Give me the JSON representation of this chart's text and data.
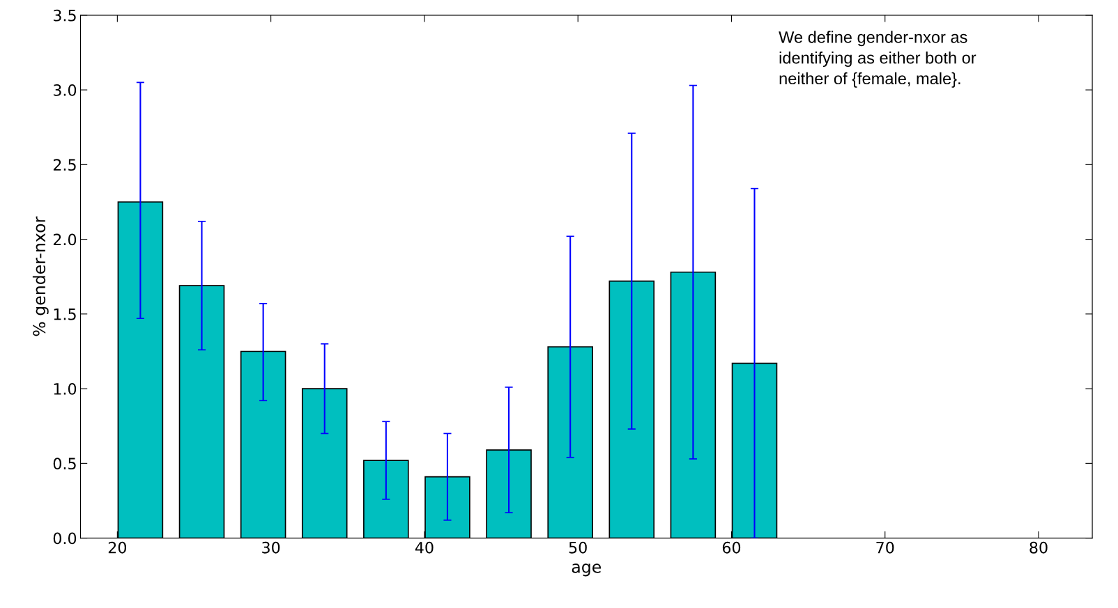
{
  "chart_data": {
    "type": "bar",
    "xlabel": "age",
    "ylabel": "% gender-nxor",
    "x": [
      21.5,
      25.5,
      29.5,
      33.5,
      37.5,
      41.5,
      45.5,
      49.5,
      53.5,
      57.5,
      61.5
    ],
    "values": [
      2.25,
      1.69,
      1.25,
      1.0,
      0.52,
      0.41,
      0.59,
      1.28,
      1.72,
      1.78,
      1.17
    ],
    "errors": [
      [
        1.47,
        3.05
      ],
      [
        1.26,
        2.12
      ],
      [
        0.92,
        1.57
      ],
      [
        0.7,
        1.3
      ],
      [
        0.26,
        0.78
      ],
      [
        0.12,
        0.7
      ],
      [
        0.17,
        1.01
      ],
      [
        0.54,
        2.02
      ],
      [
        0.73,
        2.71
      ],
      [
        0.53,
        3.03
      ],
      [
        0.0,
        2.34
      ]
    ],
    "color": "#00bfbf",
    "xlim": [
      17.6,
      83.5
    ],
    "xticks": [
      20,
      30,
      40,
      50,
      60,
      70,
      80
    ],
    "ylim": [
      0,
      3.5
    ],
    "yticks": [
      {
        "value": 0,
        "label": "0.0"
      },
      0.5,
      {
        "value": 1,
        "label": "1.0"
      },
      1.5,
      {
        "value": 2,
        "label": "2.0"
      },
      2.5,
      {
        "value": 3,
        "label": "3.0"
      },
      3.5
    ],
    "grid": false,
    "annotations": [
      "We define gender-nxor as\nidentifying as either both or\nneither of {female, male}."
    ]
  }
}
